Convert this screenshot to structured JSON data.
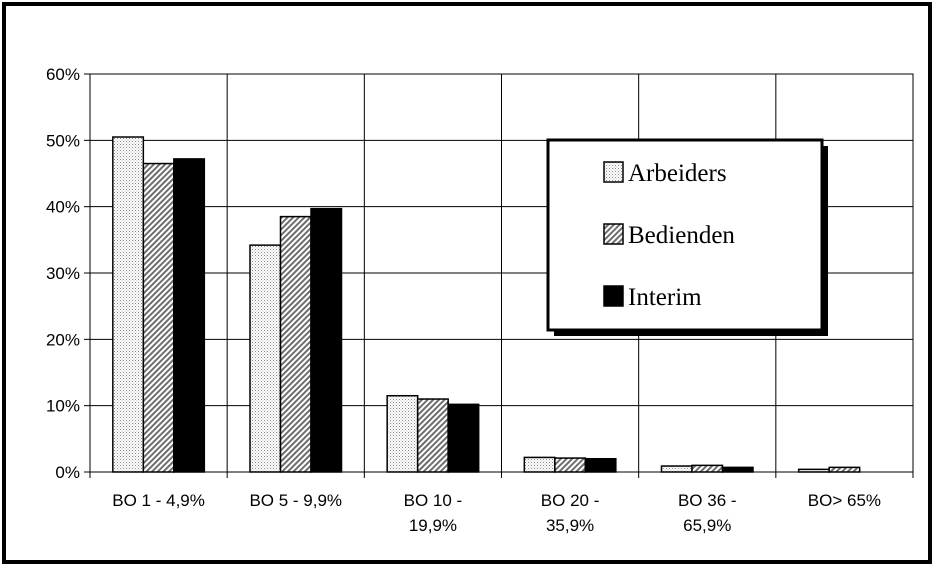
{
  "chart_data": {
    "type": "bar",
    "title": "",
    "xlabel": "",
    "ylabel": "",
    "categories": [
      [
        "BO 1 - 4,9%"
      ],
      [
        "BO 5 - 9,9%"
      ],
      [
        "BO 10 -",
        "19,9%"
      ],
      [
        "BO 20 -",
        "35,9%"
      ],
      [
        "BO 36 -",
        "65,9%"
      ],
      [
        "BO> 65%"
      ]
    ],
    "ylim": [
      0,
      0.6
    ],
    "yticks": [
      "0%",
      "10%",
      "20%",
      "30%",
      "40%",
      "50%",
      "60%"
    ],
    "grid": true,
    "legend_position": "center-right",
    "series": [
      {
        "name": "Arbeiders",
        "pattern": "dotted",
        "fill": "#f2f2f2",
        "values": [
          0.505,
          0.342,
          0.115,
          0.022,
          0.009,
          0.004
        ]
      },
      {
        "name": "Bedienden",
        "pattern": "hatched",
        "fill": "#9a9a9a",
        "values": [
          0.465,
          0.385,
          0.11,
          0.021,
          0.01,
          0.007
        ]
      },
      {
        "name": "Interim",
        "pattern": "solid",
        "fill": "#000000",
        "values": [
          0.472,
          0.397,
          0.102,
          0.02,
          0.007,
          0.0
        ]
      }
    ]
  }
}
